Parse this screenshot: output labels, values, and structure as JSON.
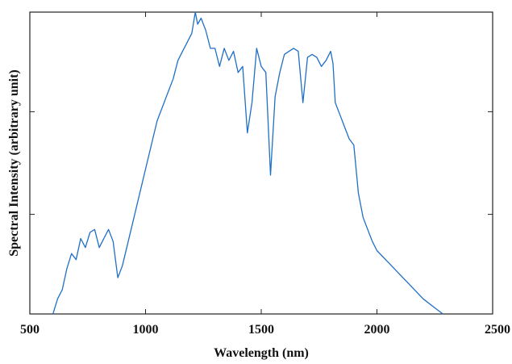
{
  "chart_data": {
    "type": "line",
    "title": "",
    "xlabel": "Wavelength (nm)",
    "ylabel": "Spectral Intensity (arbitrary unit)",
    "xlim": [
      500,
      2500
    ],
    "ylim": [
      0,
      1
    ],
    "xticks": [
      500,
      1000,
      1500,
      2000,
      2500
    ],
    "xtick_labels": [
      "500",
      "1000",
      "1500",
      "2000",
      "2500"
    ],
    "yticks_unlabeled": [
      0.33,
      0.67,
      1.0
    ],
    "grid": false,
    "legend": "none",
    "series": [
      {
        "color": "#1f6fc4",
        "x": [
          600,
          620,
          640,
          660,
          680,
          700,
          720,
          740,
          760,
          780,
          800,
          820,
          840,
          860,
          880,
          900,
          950,
          1000,
          1050,
          1080,
          1100,
          1120,
          1140,
          1160,
          1180,
          1200,
          1215,
          1225,
          1240,
          1260,
          1280,
          1300,
          1320,
          1340,
          1360,
          1380,
          1400,
          1420,
          1440,
          1460,
          1480,
          1500,
          1520,
          1540,
          1560,
          1580,
          1600,
          1620,
          1640,
          1660,
          1680,
          1700,
          1720,
          1740,
          1760,
          1780,
          1800,
          1810,
          1820,
          1840,
          1860,
          1880,
          1900,
          1920,
          1940,
          1960,
          1980,
          2000,
          2050,
          2100,
          2150,
          2200,
          2250,
          2285
        ],
        "y": [
          0.0,
          0.05,
          0.08,
          0.15,
          0.2,
          0.18,
          0.25,
          0.22,
          0.27,
          0.28,
          0.22,
          0.25,
          0.28,
          0.24,
          0.12,
          0.16,
          0.32,
          0.48,
          0.64,
          0.7,
          0.74,
          0.78,
          0.84,
          0.87,
          0.9,
          0.93,
          1.0,
          0.96,
          0.98,
          0.94,
          0.88,
          0.88,
          0.82,
          0.88,
          0.84,
          0.87,
          0.8,
          0.82,
          0.6,
          0.7,
          0.88,
          0.82,
          0.8,
          0.46,
          0.72,
          0.8,
          0.86,
          0.87,
          0.88,
          0.87,
          0.7,
          0.85,
          0.86,
          0.85,
          0.82,
          0.84,
          0.87,
          0.83,
          0.7,
          0.66,
          0.62,
          0.58,
          0.56,
          0.4,
          0.32,
          0.28,
          0.24,
          0.21,
          0.17,
          0.13,
          0.09,
          0.05,
          0.02,
          0.0
        ]
      }
    ]
  }
}
